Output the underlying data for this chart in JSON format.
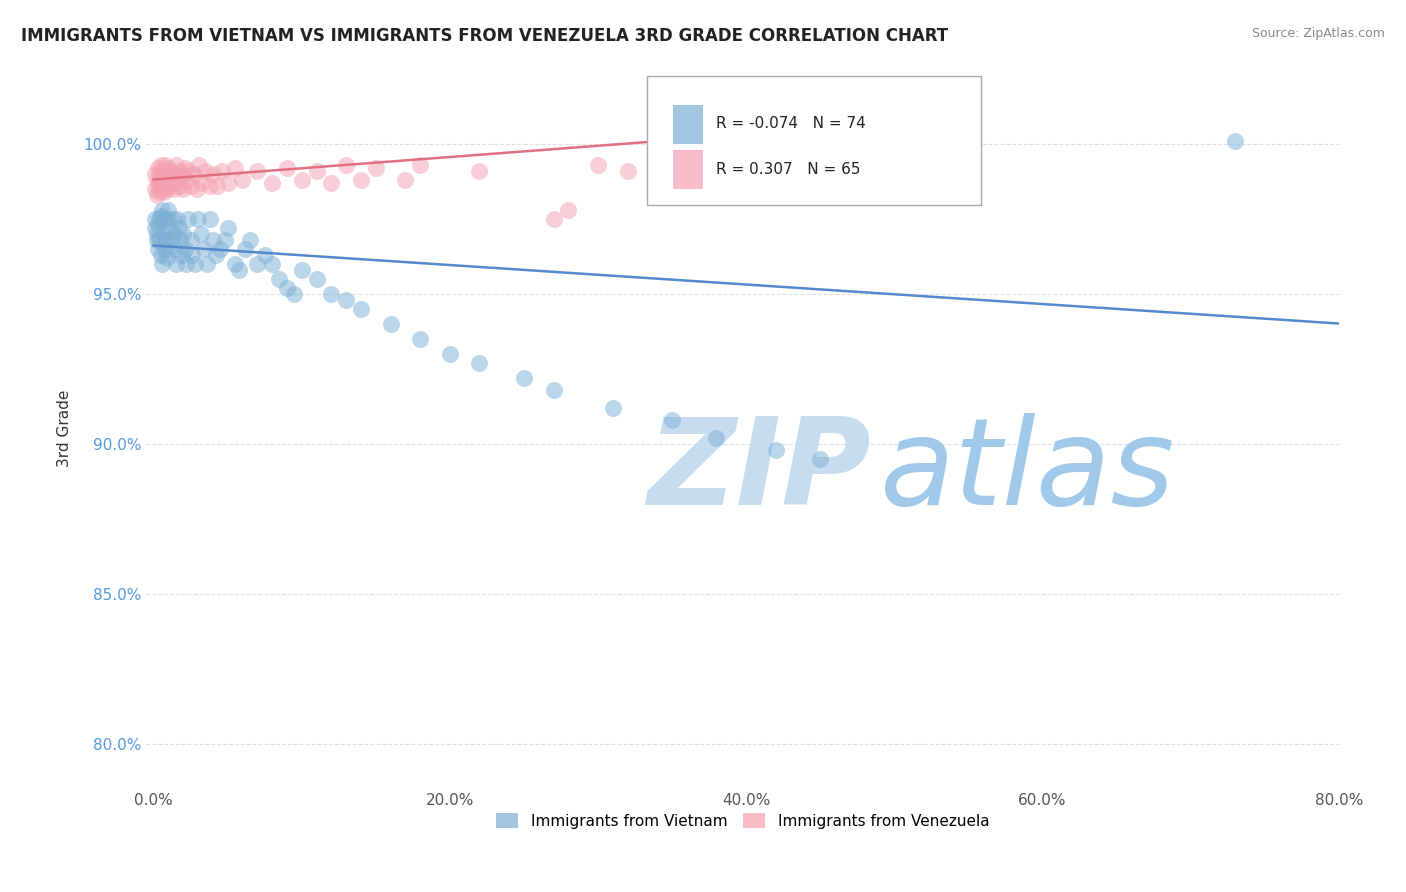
{
  "title": "IMMIGRANTS FROM VIETNAM VS IMMIGRANTS FROM VENEZUELA 3RD GRADE CORRELATION CHART",
  "source": "Source: ZipAtlas.com",
  "ylabel": "3rd Grade",
  "x_tick_labels": [
    "0.0%",
    "",
    "20.0%",
    "",
    "40.0%",
    "",
    "60.0%",
    "",
    "80.0%"
  ],
  "x_tick_values": [
    0.0,
    0.1,
    0.2,
    0.3,
    0.4,
    0.5,
    0.6,
    0.7,
    0.8
  ],
  "x_tick_labels_shown": [
    "0.0%",
    "20.0%",
    "40.0%",
    "60.0%",
    "80.0%"
  ],
  "x_tick_values_shown": [
    0.0,
    0.2,
    0.4,
    0.6,
    0.8
  ],
  "y_tick_labels": [
    "80.0%",
    "85.0%",
    "90.0%",
    "95.0%",
    "100.0%"
  ],
  "y_tick_values": [
    0.8,
    0.85,
    0.9,
    0.95,
    1.0
  ],
  "xlim": [
    -0.005,
    0.8
  ],
  "ylim": [
    0.785,
    1.025
  ],
  "legend_blue_label": "Immigrants from Vietnam",
  "legend_pink_label": "Immigrants from Venezuela",
  "legend_R_blue": "-0.074",
  "legend_N_blue": "74",
  "legend_R_pink": "0.307",
  "legend_N_pink": "65",
  "blue_color": "#7BAFD4",
  "pink_color": "#F4A0B0",
  "blue_line_color": "#5588CC",
  "pink_line_color": "#E07080",
  "watermark_zip": "ZIP",
  "watermark_atlas": "atlas",
  "watermark_color_zip": "#C8DCF0",
  "watermark_color_atlas": "#A0C8E8",
  "background_color": "#FFFFFF",
  "grid_color": "#DDDDDD",
  "blue_scatter_x": [
    0.001,
    0.001,
    0.002,
    0.002,
    0.003,
    0.003,
    0.004,
    0.004,
    0.005,
    0.005,
    0.006,
    0.006,
    0.007,
    0.007,
    0.008,
    0.008,
    0.009,
    0.009,
    0.01,
    0.01,
    0.011,
    0.012,
    0.013,
    0.014,
    0.015,
    0.015,
    0.016,
    0.017,
    0.018,
    0.019,
    0.02,
    0.021,
    0.022,
    0.023,
    0.025,
    0.026,
    0.028,
    0.03,
    0.032,
    0.034,
    0.036,
    0.038,
    0.04,
    0.042,
    0.045,
    0.048,
    0.05,
    0.055,
    0.058,
    0.062,
    0.065,
    0.07,
    0.075,
    0.08,
    0.085,
    0.09,
    0.095,
    0.1,
    0.11,
    0.12,
    0.13,
    0.14,
    0.16,
    0.18,
    0.2,
    0.22,
    0.25,
    0.27,
    0.31,
    0.35,
    0.38,
    0.42,
    0.45,
    0.73
  ],
  "blue_scatter_y": [
    0.975,
    0.972,
    0.97,
    0.968,
    0.973,
    0.965,
    0.975,
    0.968,
    0.976,
    0.963,
    0.978,
    0.96,
    0.975,
    0.97,
    0.968,
    0.965,
    0.962,
    0.975,
    0.978,
    0.965,
    0.971,
    0.968,
    0.975,
    0.97,
    0.965,
    0.96,
    0.975,
    0.972,
    0.968,
    0.963,
    0.97,
    0.965,
    0.96,
    0.975,
    0.968,
    0.963,
    0.96,
    0.975,
    0.97,
    0.965,
    0.96,
    0.975,
    0.968,
    0.963,
    0.965,
    0.968,
    0.972,
    0.96,
    0.958,
    0.965,
    0.968,
    0.96,
    0.963,
    0.96,
    0.955,
    0.952,
    0.95,
    0.958,
    0.955,
    0.95,
    0.948,
    0.945,
    0.94,
    0.935,
    0.93,
    0.927,
    0.922,
    0.918,
    0.912,
    0.908,
    0.902,
    0.898,
    0.895,
    1.001
  ],
  "pink_scatter_x": [
    0.001,
    0.001,
    0.002,
    0.002,
    0.003,
    0.003,
    0.004,
    0.004,
    0.005,
    0.005,
    0.006,
    0.006,
    0.007,
    0.007,
    0.008,
    0.008,
    0.009,
    0.009,
    0.01,
    0.01,
    0.011,
    0.012,
    0.013,
    0.014,
    0.015,
    0.016,
    0.017,
    0.018,
    0.019,
    0.02,
    0.021,
    0.022,
    0.023,
    0.025,
    0.027,
    0.029,
    0.031,
    0.033,
    0.035,
    0.038,
    0.04,
    0.043,
    0.046,
    0.05,
    0.055,
    0.06,
    0.07,
    0.08,
    0.09,
    0.1,
    0.11,
    0.12,
    0.13,
    0.14,
    0.15,
    0.17,
    0.18,
    0.22,
    0.27,
    0.28,
    0.3,
    0.32,
    0.35,
    0.38,
    0.4
  ],
  "pink_scatter_y": [
    0.99,
    0.985,
    0.988,
    0.983,
    0.992,
    0.986,
    0.99,
    0.984,
    0.993,
    0.987,
    0.991,
    0.985,
    0.99,
    0.984,
    0.993,
    0.986,
    0.99,
    0.985,
    0.992,
    0.987,
    0.991,
    0.986,
    0.99,
    0.985,
    0.993,
    0.988,
    0.991,
    0.986,
    0.99,
    0.985,
    0.992,
    0.988,
    0.991,
    0.986,
    0.99,
    0.985,
    0.993,
    0.987,
    0.991,
    0.986,
    0.99,
    0.986,
    0.991,
    0.987,
    0.992,
    0.988,
    0.991,
    0.987,
    0.992,
    0.988,
    0.991,
    0.987,
    0.993,
    0.988,
    0.992,
    0.988,
    0.993,
    0.991,
    0.975,
    0.978,
    0.993,
    0.991,
    0.993,
    0.991,
    0.993
  ],
  "blue_line_x0": 0.0,
  "blue_line_x1": 0.8,
  "blue_line_y0": 0.966,
  "blue_line_y1": 0.94,
  "pink_line_x0": 0.0,
  "pink_line_x1": 0.4,
  "pink_line_y0": 0.988,
  "pink_line_y1": 1.003
}
